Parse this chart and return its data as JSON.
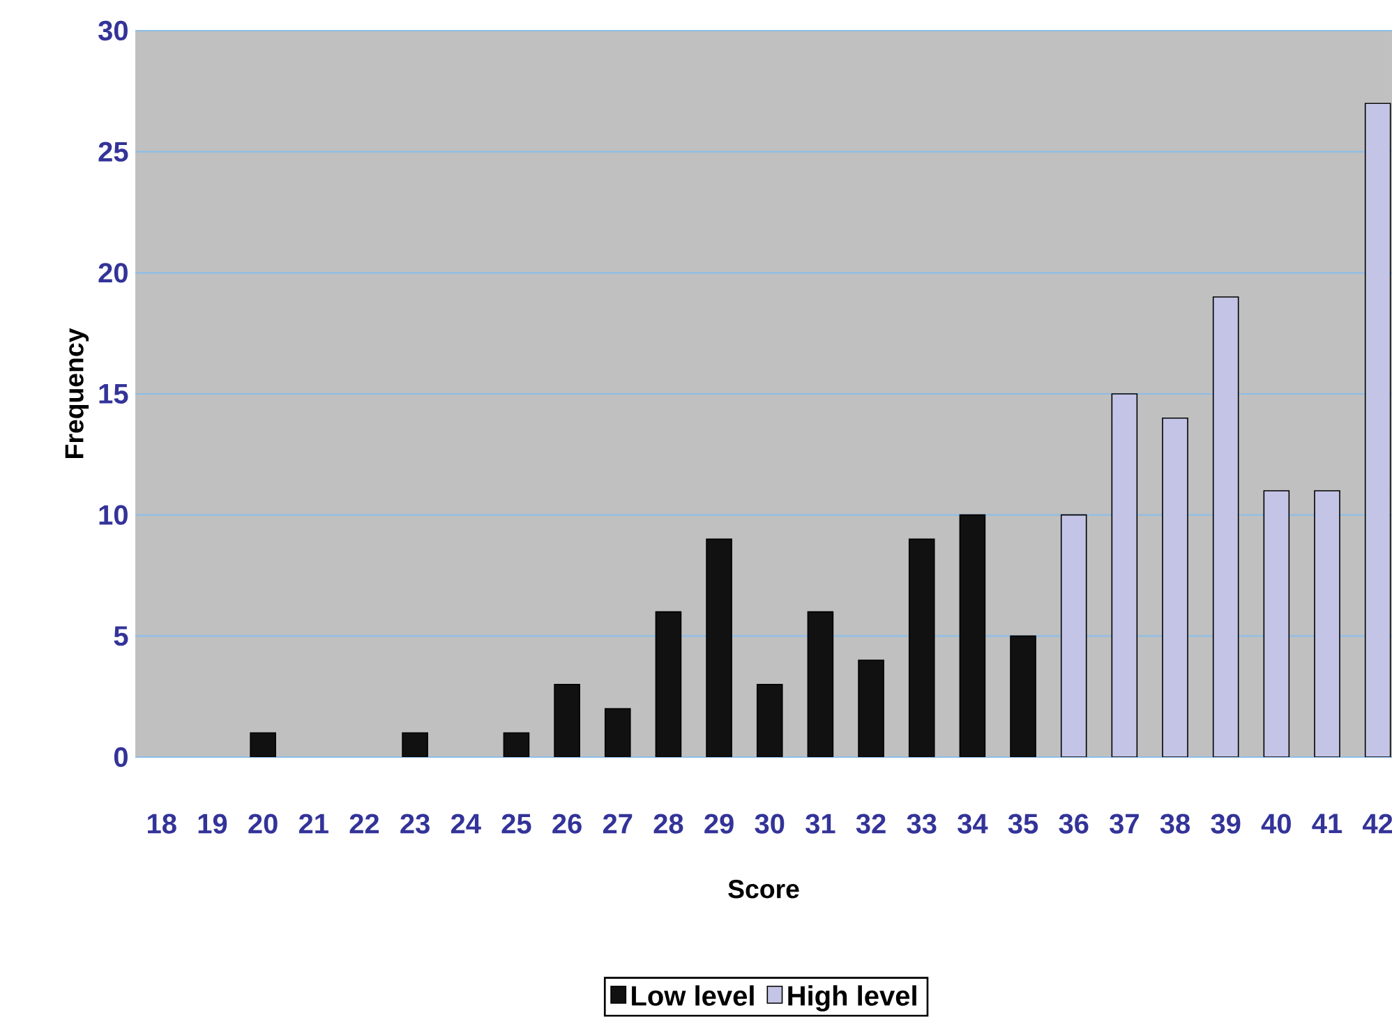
{
  "chart_data": {
    "type": "bar",
    "xlabel": "Score",
    "ylabel": "Frequency",
    "categories": [
      "18",
      "19",
      "20",
      "21",
      "22",
      "23",
      "24",
      "25",
      "26",
      "27",
      "28",
      "29",
      "30",
      "31",
      "32",
      "33",
      "34",
      "35",
      "36",
      "37",
      "38",
      "39",
      "40",
      "41",
      "42"
    ],
    "series": [
      {
        "name": "Low level",
        "color": "#111111",
        "values": [
          null,
          null,
          1,
          null,
          null,
          1,
          null,
          1,
          3,
          2,
          6,
          9,
          3,
          6,
          4,
          9,
          10,
          5,
          null,
          null,
          null,
          null,
          null,
          null,
          null
        ]
      },
      {
        "name": "High level",
        "color": "#c4c4e6",
        "values": [
          null,
          null,
          null,
          null,
          null,
          null,
          null,
          null,
          null,
          null,
          null,
          null,
          null,
          null,
          null,
          null,
          null,
          null,
          10,
          15,
          14,
          19,
          11,
          11,
          27
        ]
      }
    ],
    "ylim": [
      0,
      30
    ],
    "yticks": [
      0,
      5,
      10,
      15,
      20,
      25,
      30
    ],
    "grid": "y",
    "legend": "bottom"
  }
}
